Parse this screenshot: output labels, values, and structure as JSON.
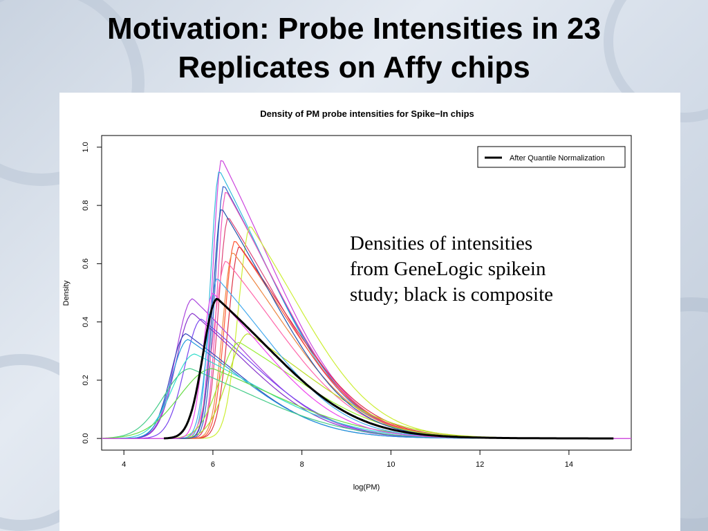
{
  "slide": {
    "title_line1": "Motivation: Probe Intensities in 23",
    "title_line2": "Replicates on Affy chips"
  },
  "annotation": {
    "line1": "Densities of intensities",
    "line2": "from GeneLogic spikein",
    "line3": "study; black is composite"
  },
  "chart_data": {
    "type": "line",
    "title": "Density of PM probe intensities for Spike−In chips",
    "xlabel": "log(PM)",
    "ylabel": "Density",
    "xlim": [
      3.5,
      15.4
    ],
    "ylim": [
      -0.04,
      1.04
    ],
    "x_ticks": [
      4,
      6,
      8,
      10,
      12,
      14
    ],
    "x_tick_labels": [
      "4",
      "6",
      "8",
      "10",
      "12",
      "14"
    ],
    "y_ticks": [
      0.0,
      0.2,
      0.4,
      0.6,
      0.8,
      1.0
    ],
    "y_tick_labels": [
      "0.0",
      "0.2",
      "0.4",
      "0.6",
      "0.8",
      "1.0"
    ],
    "grid": false,
    "legend": {
      "position": "top-right",
      "entries": [
        {
          "label": "After Quantile Normalization",
          "color": "#000000"
        }
      ]
    },
    "series": [
      {
        "name": "After Quantile Normalization",
        "color": "#000000",
        "width": 3,
        "mode": 6.1,
        "peak": 0.48,
        "left_sd": 0.32,
        "right_sd": 1.7,
        "x_start": 4.9,
        "x_end": 15.0
      },
      {
        "color": "#cc44dd",
        "mode": 6.2,
        "peak": 0.96,
        "left_sd": 0.2,
        "right_sd": 1.55
      },
      {
        "color": "#33bbdd",
        "mode": 6.15,
        "peak": 0.92,
        "left_sd": 0.2,
        "right_sd": 1.55
      },
      {
        "color": "#3366cc",
        "mode": 6.25,
        "peak": 0.87,
        "left_sd": 0.2,
        "right_sd": 1.55
      },
      {
        "color": "#ee55bb",
        "mode": 6.3,
        "peak": 0.85,
        "left_sd": 0.2,
        "right_sd": 1.55
      },
      {
        "color": "#dd4477",
        "mode": 6.35,
        "peak": 0.76,
        "left_sd": 0.22,
        "right_sd": 1.55
      },
      {
        "color": "#ccee33",
        "mode": 6.85,
        "peak": 0.73,
        "left_sd": 0.28,
        "right_sd": 1.5
      },
      {
        "color": "#ff5533",
        "mode": 6.5,
        "peak": 0.68,
        "left_sd": 0.23,
        "right_sd": 1.55
      },
      {
        "color": "#dd3344",
        "mode": 6.6,
        "peak": 0.66,
        "left_sd": 0.25,
        "right_sd": 1.55
      },
      {
        "color": "#ee8844",
        "mode": 6.45,
        "peak": 0.64,
        "left_sd": 0.23,
        "right_sd": 1.55
      },
      {
        "color": "#ff66aa",
        "mode": 6.3,
        "peak": 0.61,
        "left_sd": 0.28,
        "right_sd": 1.6
      },
      {
        "color": "#aa44dd",
        "mode": 5.55,
        "peak": 0.48,
        "left_sd": 0.38,
        "right_sd": 1.6
      },
      {
        "color": "#8833cc",
        "mode": 5.55,
        "peak": 0.43,
        "left_sd": 0.38,
        "right_sd": 1.6
      },
      {
        "color": "#7744ee",
        "mode": 5.75,
        "peak": 0.41,
        "left_sd": 0.38,
        "right_sd": 1.6
      },
      {
        "color": "#3344bb",
        "mode": 5.4,
        "peak": 0.36,
        "left_sd": 0.35,
        "right_sd": 1.6
      },
      {
        "color": "#2299dd",
        "mode": 5.45,
        "peak": 0.34,
        "left_sd": 0.38,
        "right_sd": 1.6
      },
      {
        "color": "#33ddcc",
        "mode": 5.6,
        "peak": 0.29,
        "left_sd": 0.5,
        "right_sd": 1.9
      },
      {
        "color": "#44cc88",
        "mode": 5.5,
        "peak": 0.24,
        "left_sd": 0.6,
        "right_sd": 1.9
      },
      {
        "color": "#66dd44",
        "mode": 6.0,
        "peak": 0.24,
        "left_sd": 0.75,
        "right_sd": 1.9
      },
      {
        "color": "#99ee33",
        "mode": 6.6,
        "peak": 0.33,
        "left_sd": 0.45,
        "right_sd": 1.75
      },
      {
        "color": "#bbdd22",
        "mode": 6.8,
        "peak": 0.36,
        "left_sd": 0.45,
        "right_sd": 1.75
      },
      {
        "color": "#44aaee",
        "mode": 6.1,
        "peak": 0.55,
        "left_sd": 0.22,
        "right_sd": 1.55
      },
      {
        "color": "#2255aa",
        "mode": 6.2,
        "peak": 0.79,
        "left_sd": 0.2,
        "right_sd": 1.55
      },
      {
        "color": "#ee44ee",
        "mode": 6.0,
        "peak": 0.5,
        "left_sd": 0.22,
        "right_sd": 1.55
      }
    ]
  }
}
